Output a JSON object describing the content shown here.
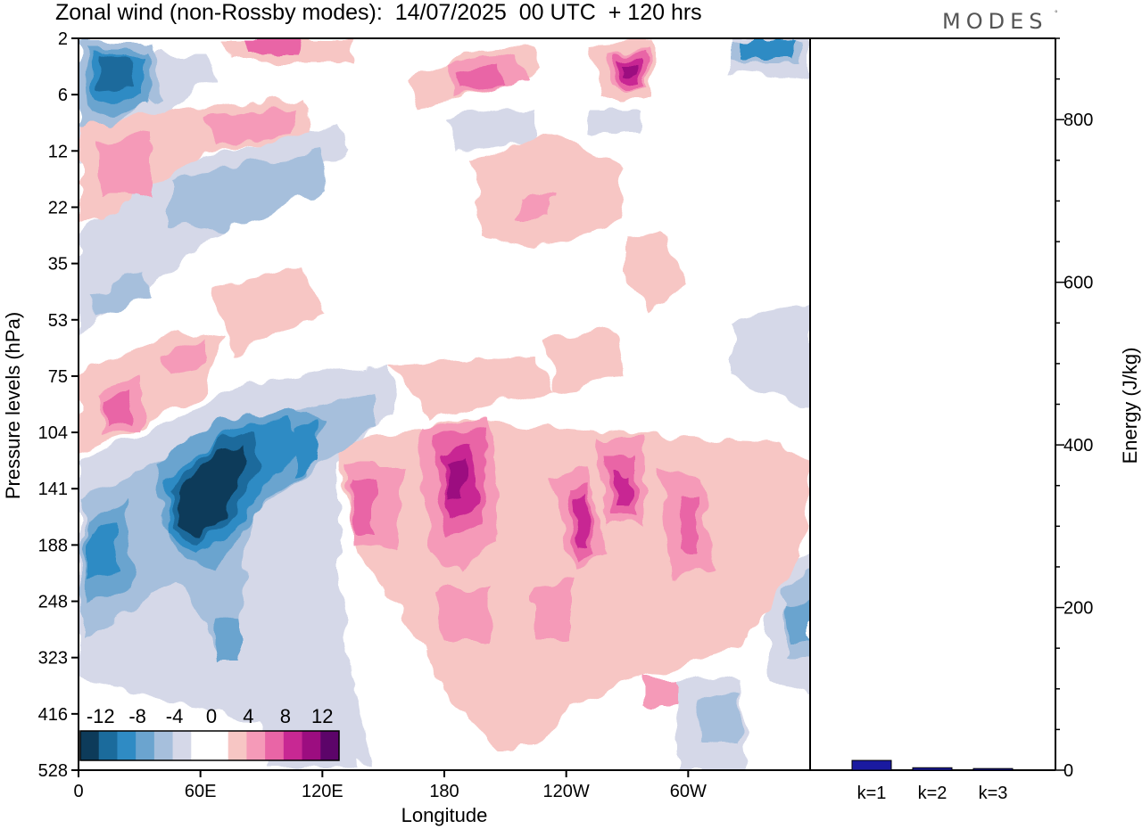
{
  "title": "Zonal wind (non-Rossby modes):  14/07/2025  00 UTC  + 120 hrs",
  "logo": "MODES",
  "logo_mark": "°",
  "chart_data": [
    {
      "type": "heatmap",
      "title": "Zonal wind (non-Rossby modes):  14/07/2025  00 UTC  + 120 hrs",
      "xlabel": "Longitude",
      "ylabel": "Pressure levels (hPa)",
      "x_ticks": [
        "0",
        "60E",
        "120E",
        "180",
        "120W",
        "60W"
      ],
      "y_ticks": [
        "2",
        "6",
        "12",
        "22",
        "35",
        "53",
        "75",
        "104",
        "141",
        "188",
        "248",
        "323",
        "416",
        "528"
      ],
      "colorbar": {
        "labels": [
          "-12",
          "-8",
          "-4",
          "0",
          "4",
          "8",
          "12"
        ],
        "colors": [
          "#0d3b5a",
          "#1b6b9c",
          "#2f8bc4",
          "#6ba4cf",
          "#a6bfdc",
          "#d5d8e8",
          "#ffffff",
          "#ffffff",
          "#f7c6c4",
          "#f59ab8",
          "#e965a6",
          "#c82893",
          "#9c0d80",
          "#5c0469"
        ]
      },
      "features": [
        {
          "name": "strong negative core",
          "lon": 60,
          "level": "141",
          "value": -14
        },
        {
          "name": "negative band",
          "lon": 15,
          "level": "188",
          "value": -8
        },
        {
          "name": "positive core",
          "lon": 185,
          "level": "141",
          "value": 10
        },
        {
          "name": "positive core",
          "lon": 245,
          "level": "141",
          "value": 10
        },
        {
          "name": "positive core",
          "lon": 255,
          "level": "104",
          "value": 8
        },
        {
          "name": "positive core",
          "lon": 270,
          "level": "4",
          "value": 12
        },
        {
          "name": "negative core",
          "lon": 15,
          "level": "4",
          "value": -8
        }
      ]
    },
    {
      "type": "bar",
      "categories": [
        "k=1",
        "k=2",
        "k=3"
      ],
      "values": [
        12,
        3,
        2
      ],
      "ylabel": "Energy (J/kg)",
      "ylim": [
        0,
        900
      ],
      "y_ticks": [
        "0",
        "200",
        "400",
        "600",
        "800"
      ],
      "bar_color": "#1a1aa0"
    }
  ]
}
